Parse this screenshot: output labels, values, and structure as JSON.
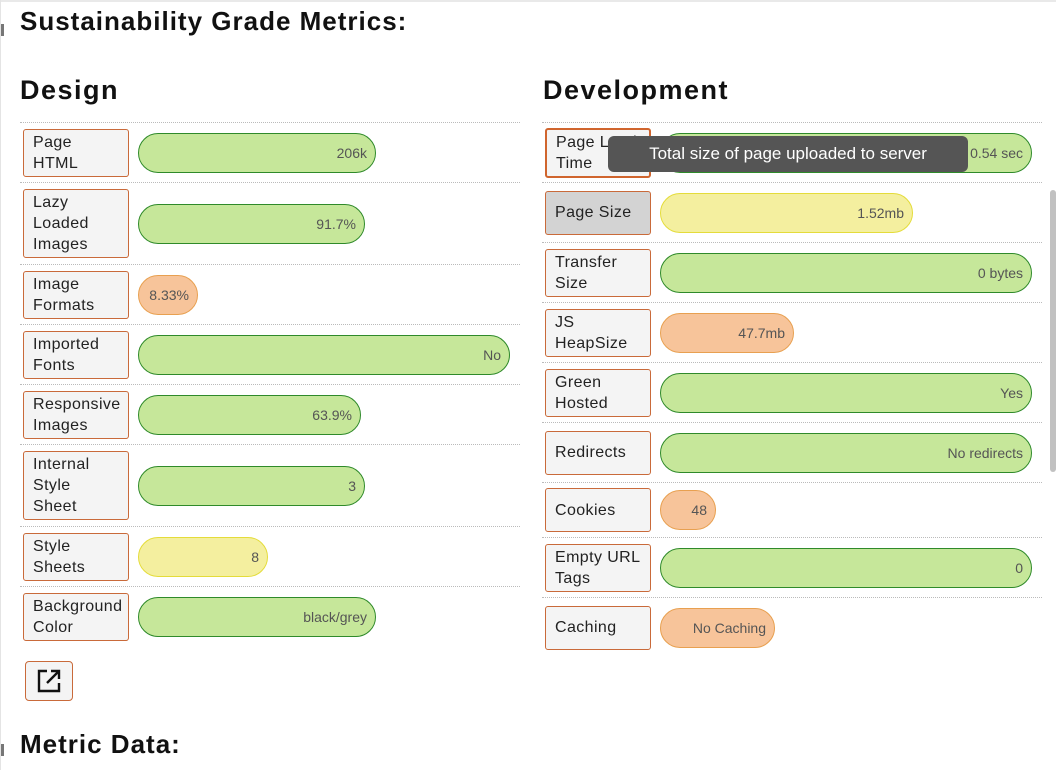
{
  "page": {
    "heading": "Sustainability Grade Metrics:",
    "footer_heading": "Metric Data:"
  },
  "tooltip": {
    "text": "Total size of page uploaded to server"
  },
  "icons": {
    "open_external": "external-link-icon"
  },
  "colors": {
    "good": "#c6e79a",
    "warning": "#f4ef9f",
    "poor": "#f7c49a"
  },
  "design": {
    "title": "Design",
    "metrics": [
      {
        "label": "Page HTML",
        "value": "206k",
        "status": "good",
        "fraction": 0.64
      },
      {
        "label": "Lazy Loaded Images",
        "value": "91.7%",
        "status": "good",
        "fraction": 0.61
      },
      {
        "label": "Image Formats",
        "value": "8.33%",
        "status": "poor",
        "fraction": 0.16
      },
      {
        "label": "Imported Fonts",
        "value": "No",
        "status": "good",
        "fraction": 1.0
      },
      {
        "label": "Responsive Images",
        "value": "63.9%",
        "status": "good",
        "fraction": 0.6
      },
      {
        "label": "Internal Style Sheet",
        "value": "3",
        "status": "good",
        "fraction": 0.61
      },
      {
        "label": "Style Sheets",
        "value": "8",
        "status": "warning",
        "fraction": 0.35
      },
      {
        "label": "Background Color",
        "value": "black/grey",
        "status": "good",
        "fraction": 0.64
      }
    ]
  },
  "development": {
    "title": "Development",
    "metrics": [
      {
        "label": "Page Load Time",
        "value": "0.54 sec",
        "status": "good",
        "fraction": 1.0,
        "state": "active"
      },
      {
        "label": "Page Size",
        "value": "1.52mb",
        "status": "warning",
        "fraction": 0.68,
        "state": "hover"
      },
      {
        "label": "Transfer Size",
        "value": "0 bytes",
        "status": "good",
        "fraction": 1.0
      },
      {
        "label": "JS HeapSize",
        "value": "47.7mb",
        "status": "poor",
        "fraction": 0.36
      },
      {
        "label": "Green Hosted",
        "value": "Yes",
        "status": "good",
        "fraction": 1.0
      },
      {
        "label": "Redirects",
        "value": "No redirects",
        "status": "good",
        "fraction": 1.0
      },
      {
        "label": "Cookies",
        "value": "48",
        "status": "poor",
        "fraction": 0.15
      },
      {
        "label": "Empty URL Tags",
        "value": "0",
        "status": "good",
        "fraction": 1.0
      },
      {
        "label": "Caching",
        "value": "No Caching",
        "status": "poor",
        "fraction": 0.31
      }
    ]
  }
}
